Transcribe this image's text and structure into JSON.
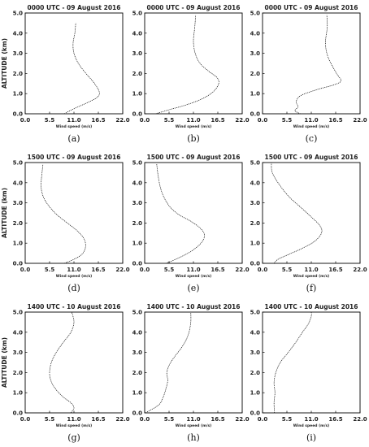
{
  "figure": {
    "ylabel": "ALTITUDE (km)",
    "xlabel": "Wind speed (m/s)",
    "x_ticks": [
      "0.0",
      "5.5",
      "11.0",
      "16.5",
      "22.0"
    ],
    "y_ticks": [
      "0.0",
      "1.0",
      "2.0",
      "3.0",
      "4.0",
      "5.0"
    ]
  },
  "chart_data": [
    {
      "id": "a",
      "type": "line",
      "caption": "(a)",
      "title": "0000 UTC - 09 August 2016",
      "xlim": [
        0,
        22
      ],
      "ylim": [
        0,
        5
      ],
      "x": [
        8.8,
        11.0,
        13.5,
        15.8,
        16.7,
        16.5,
        15.3,
        13.7,
        12.0,
        11.0,
        10.8,
        11.2,
        11.4
      ],
      "y": [
        0.0,
        0.25,
        0.5,
        0.75,
        0.95,
        1.2,
        1.6,
        2.0,
        2.5,
        3.0,
        3.5,
        4.0,
        4.5
      ]
    },
    {
      "id": "d",
      "type": "line",
      "caption": "(d)",
      "title": "1500 UTC - 09 August 2016",
      "xlim": [
        0,
        22
      ],
      "ylim": [
        0,
        5
      ],
      "x": [
        8.8,
        11.0,
        12.8,
        13.6,
        13.3,
        11.8,
        9.5,
        7.2,
        5.5,
        4.3,
        3.7,
        3.6,
        3.8,
        4.0
      ],
      "y": [
        0.0,
        0.2,
        0.45,
        0.8,
        1.2,
        1.6,
        2.0,
        2.4,
        2.8,
        3.2,
        3.6,
        4.0,
        4.5,
        4.9
      ]
    },
    {
      "id": "g",
      "type": "line",
      "caption": "(g)",
      "title": "1400 UTC - 10 August 2016",
      "xlim": [
        0,
        22
      ],
      "ylim": [
        0,
        5
      ],
      "x": [
        10.3,
        11.0,
        10.3,
        8.5,
        6.8,
        5.8,
        5.5,
        5.9,
        7.0,
        8.6,
        10.3,
        11.0,
        10.5
      ],
      "y": [
        0.0,
        0.25,
        0.5,
        0.8,
        1.2,
        1.6,
        2.0,
        2.5,
        3.0,
        3.5,
        4.0,
        4.5,
        5.0
      ]
    },
    {
      "id": "b",
      "type": "line",
      "caption": "(b)",
      "title": "0000 UTC - 09 August 2016",
      "xlim": [
        0,
        22
      ],
      "ylim": [
        0,
        5
      ],
      "x": [
        2.5,
        5.5,
        9.5,
        13.0,
        15.5,
        16.7,
        16.3,
        14.5,
        12.5,
        11.4,
        11.0,
        11.3,
        11.5
      ],
      "y": [
        0.0,
        0.2,
        0.45,
        0.75,
        1.1,
        1.5,
        1.8,
        2.1,
        2.5,
        3.0,
        3.6,
        4.3,
        4.9
      ]
    },
    {
      "id": "e",
      "type": "line",
      "caption": "(e)",
      "title": "1500 UTC - 09 August 2016",
      "xlim": [
        0,
        22
      ],
      "ylim": [
        0,
        5
      ],
      "x": [
        4.8,
        7.5,
        10.5,
        12.7,
        13.5,
        12.5,
        10.3,
        7.8,
        5.7,
        4.3,
        3.5,
        3.0,
        2.7
      ],
      "y": [
        0.0,
        0.25,
        0.6,
        1.0,
        1.4,
        1.75,
        2.1,
        2.4,
        2.8,
        3.3,
        3.8,
        4.4,
        4.95
      ]
    },
    {
      "id": "h",
      "type": "line",
      "caption": "(h)",
      "title": "1400 UTC - 10 August 2016",
      "xlim": [
        0,
        22
      ],
      "ylim": [
        0,
        5
      ],
      "x": [
        0.2,
        3.2,
        4.2,
        4.8,
        5.2,
        5.0,
        5.6,
        6.8,
        8.2,
        9.3,
        10.0,
        10.4,
        10.4
      ],
      "y": [
        0.0,
        0.4,
        0.8,
        1.2,
        1.6,
        2.0,
        2.4,
        2.8,
        3.2,
        3.6,
        4.0,
        4.5,
        5.0
      ]
    },
    {
      "id": "c",
      "type": "line",
      "caption": "(c)",
      "title": "0000 UTC - 09 August 2016",
      "xlim": [
        0,
        22
      ],
      "ylim": [
        0,
        5
      ],
      "x": [
        8.6,
        7.3,
        8.0,
        7.6,
        8.6,
        12.3,
        16.3,
        17.7,
        16.7,
        14.8,
        14.2,
        14.6,
        14.5
      ],
      "y": [
        0.0,
        0.15,
        0.35,
        0.6,
        0.9,
        1.2,
        1.45,
        1.65,
        2.0,
        2.8,
        3.5,
        4.3,
        4.9
      ]
    },
    {
      "id": "f",
      "type": "line",
      "caption": "(f)",
      "title": "1500 UTC - 09 August 2016",
      "xlim": [
        0,
        22
      ],
      "ylim": [
        0,
        5
      ],
      "x": [
        2.6,
        3.5,
        6.0,
        9.0,
        11.8,
        13.3,
        13.0,
        11.0,
        8.5,
        6.0,
        3.8,
        2.2,
        2.0
      ],
      "y": [
        0.0,
        0.2,
        0.45,
        0.75,
        1.1,
        1.5,
        1.85,
        2.3,
        2.8,
        3.3,
        3.9,
        4.5,
        5.0
      ]
    },
    {
      "id": "i",
      "type": "line",
      "caption": "(i)",
      "title": "1400 UTC - 10 August 2016",
      "xlim": [
        0,
        22
      ],
      "ylim": [
        0,
        5
      ],
      "x": [
        2.7,
        2.6,
        2.8,
        2.6,
        3.0,
        4.0,
        5.8,
        7.5,
        9.0,
        10.3,
        11.0,
        11.0
      ],
      "y": [
        0.0,
        0.5,
        1.0,
        1.5,
        2.0,
        2.5,
        3.0,
        3.5,
        4.0,
        4.4,
        4.8,
        5.0
      ]
    }
  ]
}
